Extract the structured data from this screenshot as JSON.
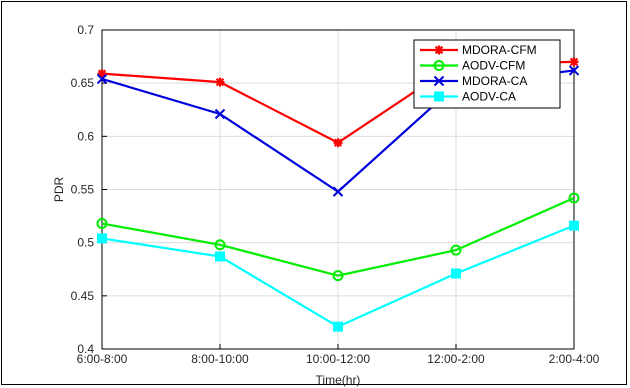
{
  "chart_data": {
    "type": "line",
    "title": "",
    "xlabel": "Time(hr)",
    "ylabel": "PDR",
    "categories": [
      "6:00-8:00",
      "8:00-10:00",
      "10:00-12:00",
      "12:00-2:00",
      "2:00-4:00"
    ],
    "ylim": [
      0.4,
      0.7
    ],
    "yticks": [
      "0.4",
      "0.45",
      "0.5",
      "0.55",
      "0.6",
      "0.65",
      "0.7"
    ],
    "grid": true,
    "legend_position": "top-right",
    "series": [
      {
        "name": "MDORA-CFM",
        "color": "#ff0000",
        "marker": "asterisk",
        "values": [
          0.659,
          0.651,
          0.594,
          0.668,
          0.67
        ]
      },
      {
        "name": "AODV-CFM",
        "color": "#00ee00",
        "marker": "circle",
        "values": [
          0.518,
          0.498,
          0.469,
          0.493,
          0.542
        ]
      },
      {
        "name": "MDORA-CA",
        "color": "#0000dd",
        "marker": "x",
        "values": [
          0.654,
          0.621,
          0.548,
          0.648,
          0.662
        ]
      },
      {
        "name": "AODV-CA",
        "color": "#00ffff",
        "marker": "square",
        "values": [
          0.504,
          0.487,
          0.421,
          0.471,
          0.516
        ]
      }
    ]
  }
}
